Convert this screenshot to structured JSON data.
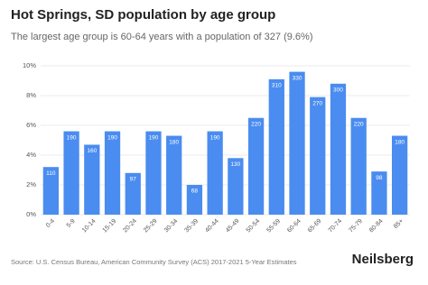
{
  "chart_data": {
    "type": "bar",
    "title": "Hot Springs, SD population by age group",
    "subtitle": "The largest age group is 60-64 years with a population of 327 (9.6%)",
    "categories": [
      "0-4",
      "5-9",
      "10-14",
      "15-19",
      "20-24",
      "25-29",
      "30-34",
      "35-39",
      "40-44",
      "45-49",
      "50-54",
      "55-59",
      "60-64",
      "65-69",
      "70-74",
      "75-79",
      "80-84",
      "85+"
    ],
    "values": [
      3.2,
      5.6,
      4.7,
      5.6,
      2.8,
      5.6,
      5.3,
      2.0,
      5.6,
      3.8,
      6.5,
      9.1,
      9.6,
      7.9,
      8.8,
      6.5,
      2.9,
      5.3
    ],
    "population": [
      110,
      190,
      160,
      190,
      97,
      190,
      180,
      68,
      190,
      130,
      220,
      310,
      330,
      270,
      300,
      220,
      98,
      180
    ],
    "color": "#4a8cf0",
    "ylim": [
      0,
      10
    ],
    "yticks": [
      {
        "value": 0,
        "label": "0%"
      },
      {
        "value": 2,
        "label": "2%"
      },
      {
        "value": 4,
        "label": "4%"
      },
      {
        "value": 6,
        "label": "6%"
      },
      {
        "value": 8,
        "label": "8%"
      },
      {
        "value": 10,
        "label": "10%"
      }
    ],
    "grid": true,
    "source": "Source: U.S. Census Bureau, American Community Survey (ACS) 2017-2021 5-Year Estimates",
    "brand": "Neilsberg"
  }
}
